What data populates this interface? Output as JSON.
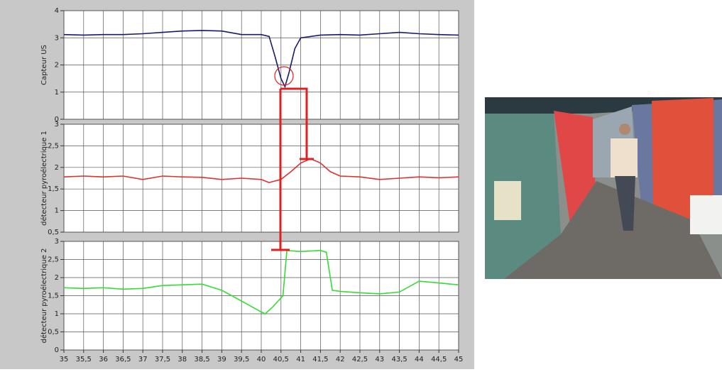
{
  "chart_data": [
    {
      "type": "line",
      "ylabel": "Capteur US",
      "x": [
        35,
        35.5,
        36,
        36.5,
        37,
        37.5,
        38,
        38.5,
        39,
        39.5,
        40,
        40.2,
        40.35,
        40.5,
        40.6,
        40.7,
        40.85,
        41,
        41.5,
        42,
        42.5,
        43,
        43.5,
        44,
        44.5,
        45
      ],
      "values": [
        3.12,
        3.1,
        3.12,
        3.12,
        3.15,
        3.2,
        3.25,
        3.27,
        3.25,
        3.12,
        3.12,
        3.05,
        2.3,
        1.5,
        1.2,
        1.7,
        2.6,
        3.0,
        3.1,
        3.12,
        3.1,
        3.15,
        3.2,
        3.15,
        3.12,
        3.1
      ],
      "color": "#1a1a6e",
      "xlim": [
        35,
        45
      ],
      "ylim": [
        0,
        4
      ],
      "yticks": [
        0,
        1,
        2,
        3,
        4
      ],
      "grid": true
    },
    {
      "type": "line",
      "ylabel": "détecteur pyroélectrique 1",
      "x": [
        35,
        35.5,
        36,
        36.5,
        37,
        37.5,
        38,
        38.5,
        39,
        39.5,
        40,
        40.2,
        40.5,
        40.75,
        41,
        41.25,
        41.5,
        41.75,
        42,
        42.5,
        43,
        43.5,
        44,
        44.5,
        45
      ],
      "values": [
        1.78,
        1.8,
        1.78,
        1.8,
        1.72,
        1.8,
        1.78,
        1.77,
        1.72,
        1.75,
        1.72,
        1.65,
        1.72,
        1.9,
        2.1,
        2.2,
        2.1,
        1.9,
        1.8,
        1.78,
        1.72,
        1.75,
        1.78,
        1.76,
        1.78
      ],
      "color": "#e03030",
      "xlim": [
        35,
        45
      ],
      "ylim": [
        0.5,
        3
      ],
      "yticks": [
        {
          "value": 0.5,
          "label": "0,5"
        },
        1,
        {
          "value": 1.5,
          "label": "1,5"
        },
        2,
        {
          "value": 2.5,
          "label": "2,5"
        },
        3
      ],
      "grid": true
    },
    {
      "type": "line",
      "ylabel": "détecteur pyroélectrique 2",
      "x": [
        35,
        35.5,
        36,
        36.5,
        37,
        37.5,
        38,
        38.5,
        39,
        39.5,
        40,
        40.1,
        40.3,
        40.55,
        40.65,
        41,
        41.5,
        41.65,
        41.8,
        42,
        42.5,
        43,
        43.5,
        44,
        44.5,
        45
      ],
      "values": [
        1.72,
        1.7,
        1.72,
        1.68,
        1.7,
        1.78,
        1.8,
        1.82,
        1.65,
        1.35,
        1.05,
        1.0,
        1.2,
        1.5,
        2.75,
        2.72,
        2.75,
        2.7,
        1.65,
        1.62,
        1.58,
        1.55,
        1.6,
        1.9,
        1.85,
        1.8
      ],
      "color": "#33dd33",
      "xlim": [
        35,
        45
      ],
      "ylim": [
        0,
        3
      ],
      "yticks": [
        0,
        {
          "value": 0.5,
          "label": "0,5"
        },
        1,
        {
          "value": 1.5,
          "label": "1,5"
        },
        2,
        {
          "value": 2.5,
          "label": "2,5"
        },
        3
      ],
      "xticks": [
        35,
        {
          "value": 35.5,
          "label": "35,5"
        },
        36,
        {
          "value": 36.5,
          "label": "36,5"
        },
        37,
        {
          "value": 37.5,
          "label": "37,5"
        },
        38,
        {
          "value": 38.5,
          "label": "38,5"
        },
        39,
        {
          "value": 39.5,
          "label": "39,5"
        },
        40,
        {
          "value": 40.5,
          "label": "40,5"
        },
        41,
        {
          "value": 41.5,
          "label": "41,5"
        },
        42,
        {
          "value": 42.5,
          "label": "42,5"
        },
        43,
        {
          "value": 43.5,
          "label": "43,5"
        },
        44,
        {
          "value": 44.5,
          "label": "44,5"
        },
        45
      ],
      "grid": true
    }
  ]
}
